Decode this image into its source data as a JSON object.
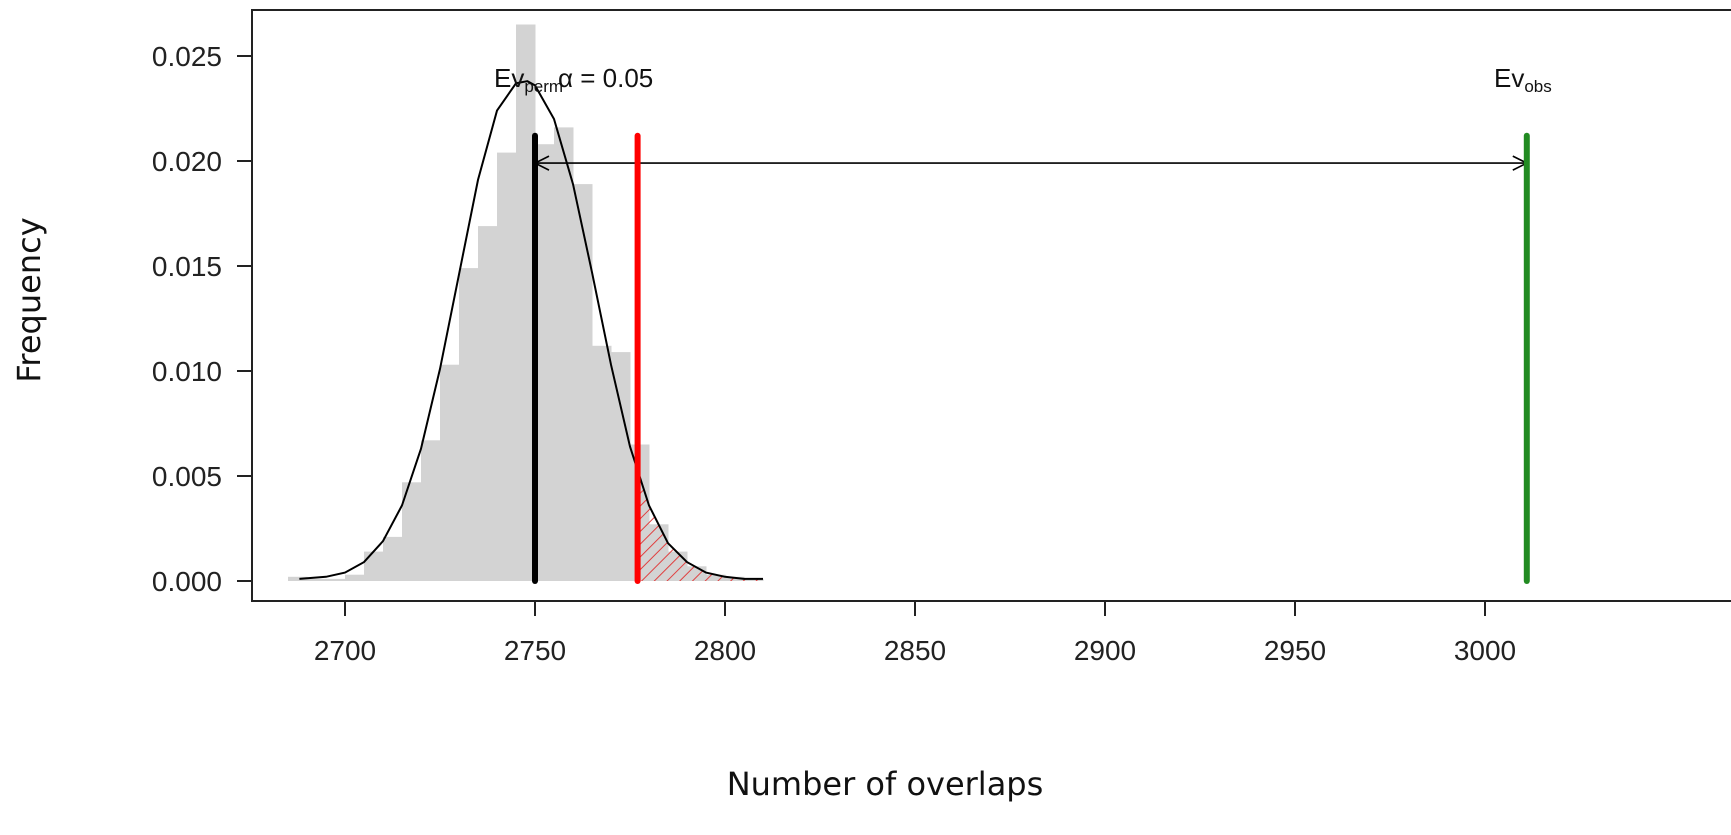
{
  "chart_data": {
    "type": "bar",
    "xlabel": "Number of overlaps",
    "ylabel": "Frequency",
    "xlim": [
      2675,
      3020
    ],
    "ylim": [
      -0.001,
      0.0268
    ],
    "x_ticks": [
      "2700",
      "2750",
      "2800",
      "2850",
      "2900",
      "2950",
      "3000"
    ],
    "y_ticks": [
      "0.000",
      "0.005",
      "0.010",
      "0.015",
      "0.020",
      "0.025"
    ],
    "histogram": {
      "bin_width": 5,
      "bins": [
        {
          "x0": 2685,
          "x1": 2690,
          "value": 0.0002
        },
        {
          "x0": 2690,
          "x1": 2695,
          "value": 0.0001
        },
        {
          "x0": 2695,
          "x1": 2700,
          "value": 0.0001
        },
        {
          "x0": 2700,
          "x1": 2705,
          "value": 0.0003
        },
        {
          "x0": 2705,
          "x1": 2710,
          "value": 0.0014
        },
        {
          "x0": 2710,
          "x1": 2715,
          "value": 0.0021
        },
        {
          "x0": 2715,
          "x1": 2720,
          "value": 0.0047
        },
        {
          "x0": 2720,
          "x1": 2725,
          "value": 0.0067
        },
        {
          "x0": 2725,
          "x1": 2730,
          "value": 0.0103
        },
        {
          "x0": 2730,
          "x1": 2735,
          "value": 0.0149
        },
        {
          "x0": 2735,
          "x1": 2740,
          "value": 0.0169
        },
        {
          "x0": 2740,
          "x1": 2745,
          "value": 0.0204
        },
        {
          "x0": 2745,
          "x1": 2750,
          "value": 0.0265
        },
        {
          "x0": 2750,
          "x1": 2755,
          "value": 0.0208
        },
        {
          "x0": 2755,
          "x1": 2760,
          "value": 0.0216
        },
        {
          "x0": 2760,
          "x1": 2765,
          "value": 0.0189
        },
        {
          "x0": 2765,
          "x1": 2770,
          "value": 0.0112
        },
        {
          "x0": 2770,
          "x1": 2775,
          "value": 0.0109
        },
        {
          "x0": 2775,
          "x1": 2780,
          "value": 0.0065
        },
        {
          "x0": 2780,
          "x1": 2785,
          "value": 0.0027
        },
        {
          "x0": 2785,
          "x1": 2790,
          "value": 0.0014
        },
        {
          "x0": 2790,
          "x1": 2795,
          "value": 0.0007
        },
        {
          "x0": 2795,
          "x1": 2800,
          "value": 0.0003
        },
        {
          "x0": 2800,
          "x1": 2805,
          "value": 0.0002
        },
        {
          "x0": 2805,
          "x1": 2810,
          "value": 0.0001
        }
      ],
      "color": "#d3d3d3"
    },
    "density_curve": {
      "x": [
        2688,
        2695,
        2700,
        2705,
        2710,
        2715,
        2720,
        2725,
        2730,
        2735,
        2740,
        2745,
        2748,
        2750,
        2755,
        2760,
        2765,
        2770,
        2775,
        2780,
        2785,
        2790,
        2795,
        2800,
        2805,
        2810
      ],
      "y": [
        0.0001,
        0.0002,
        0.0004,
        0.0009,
        0.0019,
        0.0036,
        0.0063,
        0.0101,
        0.0146,
        0.0191,
        0.0224,
        0.0237,
        0.0238,
        0.0236,
        0.022,
        0.0189,
        0.0147,
        0.0103,
        0.0064,
        0.0036,
        0.0018,
        0.0009,
        0.0004,
        0.0002,
        0.0001,
        0.0001
      ],
      "color": "#000000"
    },
    "shaded_region": {
      "x_from": 2777,
      "x_to": 2810,
      "color": "#e04040",
      "pattern": "hatched"
    },
    "vertical_lines": [
      {
        "x": 2750,
        "y_from": 0,
        "y_to": 0.0212,
        "color": "#000000"
      },
      {
        "x": 2777,
        "y_from": 0,
        "y_to": 0.0212,
        "color": "#ff0000"
      },
      {
        "x": 3011,
        "y_from": 0,
        "y_to": 0.0212,
        "color": "#228b22"
      }
    ],
    "arrow": {
      "x_from": 2750,
      "x_to": 3011,
      "y": 0.0199,
      "color": "#000000"
    },
    "annotations": {
      "ev_perm": {
        "main": "Ev",
        "sub": "perm",
        "x": 2735,
        "y": 0.0236
      },
      "alpha": {
        "text": "α = 0.05",
        "x": 2760,
        "y": 0.0236
      },
      "ev_obs": {
        "main": "Ev",
        "sub": "obs",
        "x": 3003,
        "y": 0.0236
      }
    },
    "grid": false
  }
}
